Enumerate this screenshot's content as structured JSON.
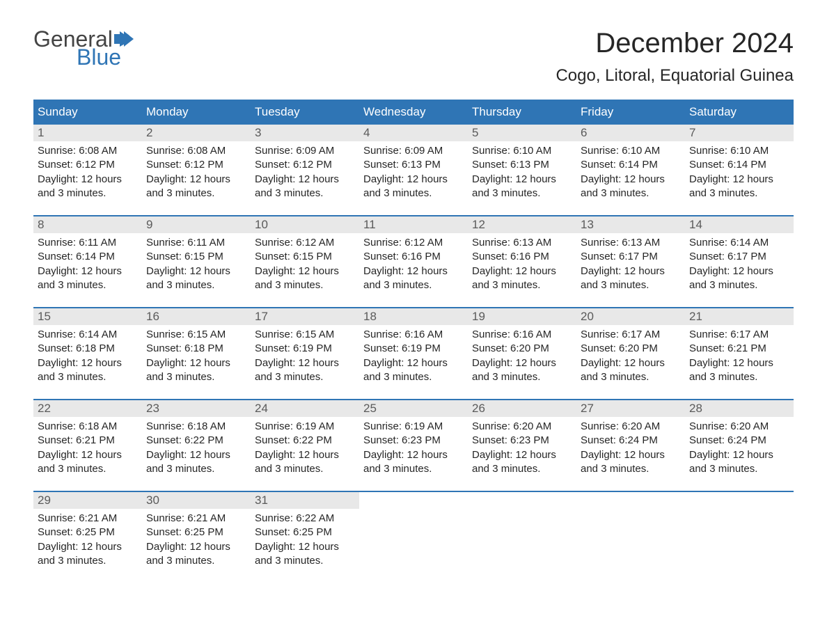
{
  "logo": {
    "text_top": "General",
    "text_bottom": "Blue",
    "flag_color": "#2f75b5"
  },
  "title": "December 2024",
  "location": "Cogo, Litoral, Equatorial Guinea",
  "colors": {
    "header_bg": "#2f75b5",
    "header_text": "#ffffff",
    "daynum_bg": "#e8e8e8",
    "daynum_text": "#5a5a5a",
    "body_text": "#262626",
    "row_border": "#2f75b5"
  },
  "weekdays": [
    "Sunday",
    "Monday",
    "Tuesday",
    "Wednesday",
    "Thursday",
    "Friday",
    "Saturday"
  ],
  "weeks": [
    [
      {
        "day": "1",
        "sunrise": "Sunrise: 6:08 AM",
        "sunset": "Sunset: 6:12 PM",
        "daylight1": "Daylight: 12 hours",
        "daylight2": "and 3 minutes."
      },
      {
        "day": "2",
        "sunrise": "Sunrise: 6:08 AM",
        "sunset": "Sunset: 6:12 PM",
        "daylight1": "Daylight: 12 hours",
        "daylight2": "and 3 minutes."
      },
      {
        "day": "3",
        "sunrise": "Sunrise: 6:09 AM",
        "sunset": "Sunset: 6:12 PM",
        "daylight1": "Daylight: 12 hours",
        "daylight2": "and 3 minutes."
      },
      {
        "day": "4",
        "sunrise": "Sunrise: 6:09 AM",
        "sunset": "Sunset: 6:13 PM",
        "daylight1": "Daylight: 12 hours",
        "daylight2": "and 3 minutes."
      },
      {
        "day": "5",
        "sunrise": "Sunrise: 6:10 AM",
        "sunset": "Sunset: 6:13 PM",
        "daylight1": "Daylight: 12 hours",
        "daylight2": "and 3 minutes."
      },
      {
        "day": "6",
        "sunrise": "Sunrise: 6:10 AM",
        "sunset": "Sunset: 6:14 PM",
        "daylight1": "Daylight: 12 hours",
        "daylight2": "and 3 minutes."
      },
      {
        "day": "7",
        "sunrise": "Sunrise: 6:10 AM",
        "sunset": "Sunset: 6:14 PM",
        "daylight1": "Daylight: 12 hours",
        "daylight2": "and 3 minutes."
      }
    ],
    [
      {
        "day": "8",
        "sunrise": "Sunrise: 6:11 AM",
        "sunset": "Sunset: 6:14 PM",
        "daylight1": "Daylight: 12 hours",
        "daylight2": "and 3 minutes."
      },
      {
        "day": "9",
        "sunrise": "Sunrise: 6:11 AM",
        "sunset": "Sunset: 6:15 PM",
        "daylight1": "Daylight: 12 hours",
        "daylight2": "and 3 minutes."
      },
      {
        "day": "10",
        "sunrise": "Sunrise: 6:12 AM",
        "sunset": "Sunset: 6:15 PM",
        "daylight1": "Daylight: 12 hours",
        "daylight2": "and 3 minutes."
      },
      {
        "day": "11",
        "sunrise": "Sunrise: 6:12 AM",
        "sunset": "Sunset: 6:16 PM",
        "daylight1": "Daylight: 12 hours",
        "daylight2": "and 3 minutes."
      },
      {
        "day": "12",
        "sunrise": "Sunrise: 6:13 AM",
        "sunset": "Sunset: 6:16 PM",
        "daylight1": "Daylight: 12 hours",
        "daylight2": "and 3 minutes."
      },
      {
        "day": "13",
        "sunrise": "Sunrise: 6:13 AM",
        "sunset": "Sunset: 6:17 PM",
        "daylight1": "Daylight: 12 hours",
        "daylight2": "and 3 minutes."
      },
      {
        "day": "14",
        "sunrise": "Sunrise: 6:14 AM",
        "sunset": "Sunset: 6:17 PM",
        "daylight1": "Daylight: 12 hours",
        "daylight2": "and 3 minutes."
      }
    ],
    [
      {
        "day": "15",
        "sunrise": "Sunrise: 6:14 AM",
        "sunset": "Sunset: 6:18 PM",
        "daylight1": "Daylight: 12 hours",
        "daylight2": "and 3 minutes."
      },
      {
        "day": "16",
        "sunrise": "Sunrise: 6:15 AM",
        "sunset": "Sunset: 6:18 PM",
        "daylight1": "Daylight: 12 hours",
        "daylight2": "and 3 minutes."
      },
      {
        "day": "17",
        "sunrise": "Sunrise: 6:15 AM",
        "sunset": "Sunset: 6:19 PM",
        "daylight1": "Daylight: 12 hours",
        "daylight2": "and 3 minutes."
      },
      {
        "day": "18",
        "sunrise": "Sunrise: 6:16 AM",
        "sunset": "Sunset: 6:19 PM",
        "daylight1": "Daylight: 12 hours",
        "daylight2": "and 3 minutes."
      },
      {
        "day": "19",
        "sunrise": "Sunrise: 6:16 AM",
        "sunset": "Sunset: 6:20 PM",
        "daylight1": "Daylight: 12 hours",
        "daylight2": "and 3 minutes."
      },
      {
        "day": "20",
        "sunrise": "Sunrise: 6:17 AM",
        "sunset": "Sunset: 6:20 PM",
        "daylight1": "Daylight: 12 hours",
        "daylight2": "and 3 minutes."
      },
      {
        "day": "21",
        "sunrise": "Sunrise: 6:17 AM",
        "sunset": "Sunset: 6:21 PM",
        "daylight1": "Daylight: 12 hours",
        "daylight2": "and 3 minutes."
      }
    ],
    [
      {
        "day": "22",
        "sunrise": "Sunrise: 6:18 AM",
        "sunset": "Sunset: 6:21 PM",
        "daylight1": "Daylight: 12 hours",
        "daylight2": "and 3 minutes."
      },
      {
        "day": "23",
        "sunrise": "Sunrise: 6:18 AM",
        "sunset": "Sunset: 6:22 PM",
        "daylight1": "Daylight: 12 hours",
        "daylight2": "and 3 minutes."
      },
      {
        "day": "24",
        "sunrise": "Sunrise: 6:19 AM",
        "sunset": "Sunset: 6:22 PM",
        "daylight1": "Daylight: 12 hours",
        "daylight2": "and 3 minutes."
      },
      {
        "day": "25",
        "sunrise": "Sunrise: 6:19 AM",
        "sunset": "Sunset: 6:23 PM",
        "daylight1": "Daylight: 12 hours",
        "daylight2": "and 3 minutes."
      },
      {
        "day": "26",
        "sunrise": "Sunrise: 6:20 AM",
        "sunset": "Sunset: 6:23 PM",
        "daylight1": "Daylight: 12 hours",
        "daylight2": "and 3 minutes."
      },
      {
        "day": "27",
        "sunrise": "Sunrise: 6:20 AM",
        "sunset": "Sunset: 6:24 PM",
        "daylight1": "Daylight: 12 hours",
        "daylight2": "and 3 minutes."
      },
      {
        "day": "28",
        "sunrise": "Sunrise: 6:20 AM",
        "sunset": "Sunset: 6:24 PM",
        "daylight1": "Daylight: 12 hours",
        "daylight2": "and 3 minutes."
      }
    ],
    [
      {
        "day": "29",
        "sunrise": "Sunrise: 6:21 AM",
        "sunset": "Sunset: 6:25 PM",
        "daylight1": "Daylight: 12 hours",
        "daylight2": "and 3 minutes."
      },
      {
        "day": "30",
        "sunrise": "Sunrise: 6:21 AM",
        "sunset": "Sunset: 6:25 PM",
        "daylight1": "Daylight: 12 hours",
        "daylight2": "and 3 minutes."
      },
      {
        "day": "31",
        "sunrise": "Sunrise: 6:22 AM",
        "sunset": "Sunset: 6:25 PM",
        "daylight1": "Daylight: 12 hours",
        "daylight2": "and 3 minutes."
      },
      null,
      null,
      null,
      null
    ]
  ]
}
